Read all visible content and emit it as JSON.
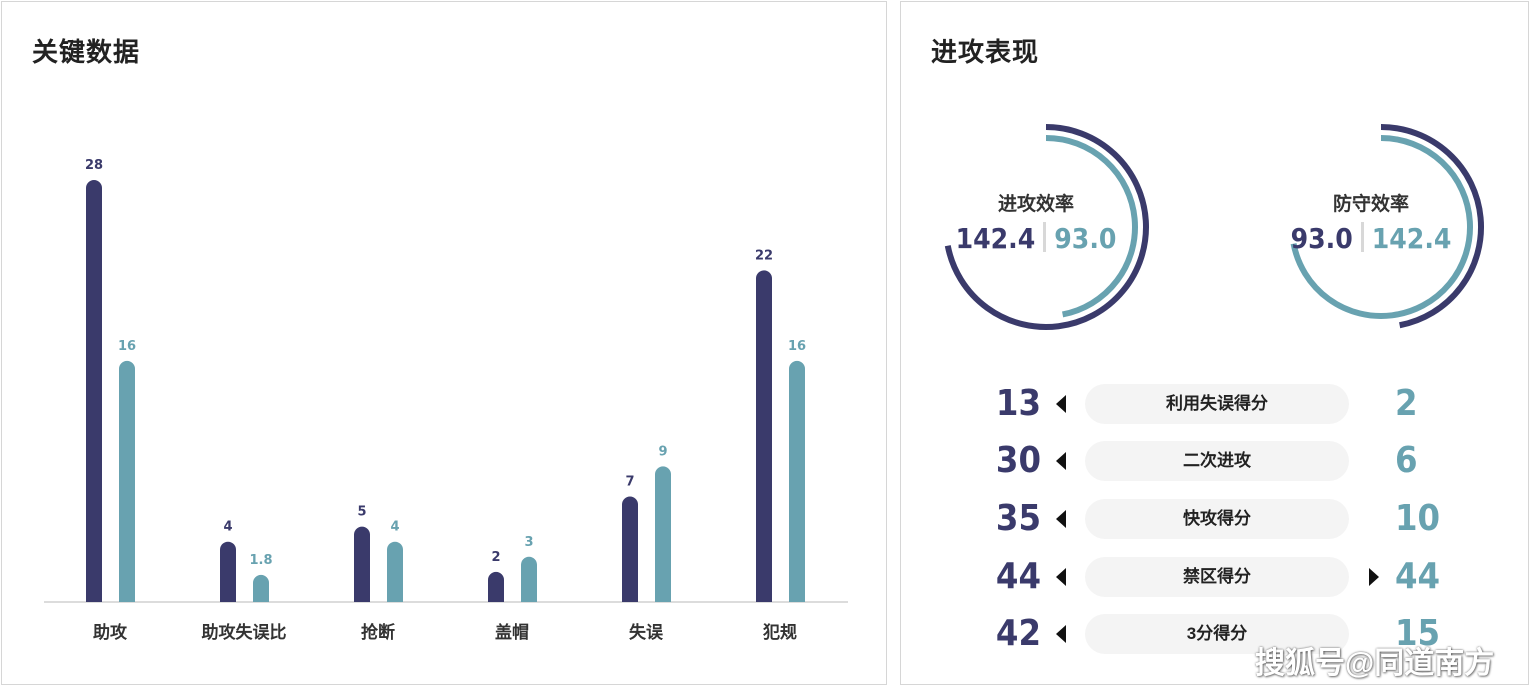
{
  "left_panel": {
    "title": "关键数据"
  },
  "right_panel": {
    "title": "进攻表现"
  },
  "colors": {
    "team_a": "#3a3a6b",
    "team_b": "#68a2b0",
    "baseline": "#d0d0d0"
  },
  "chart_data": {
    "type": "bar",
    "title": "",
    "categories": [
      "助攻",
      "助攻失误比",
      "抢断",
      "盖帽",
      "失误",
      "犯规"
    ],
    "series": [
      {
        "values": [
          28,
          4,
          5,
          2,
          7,
          22
        ],
        "labels": [
          "28",
          "4",
          "5",
          "2",
          "7",
          "22"
        ]
      },
      {
        "values": [
          16,
          1.8,
          4,
          3,
          9,
          16
        ],
        "labels": [
          "16",
          "1.8",
          "4",
          "3",
          "9",
          "16"
        ]
      }
    ],
    "ylim": [
      0,
      28
    ],
    "grid": false,
    "legend": "none"
  },
  "efficiency": [
    {
      "title": "进攻效率",
      "value_a": "142.4",
      "value_b": "93.0",
      "fraction_a": 1.0,
      "fraction_b": 0.653
    },
    {
      "title": "防守效率",
      "value_a": "93.0",
      "value_b": "142.4",
      "fraction_a": 0.653,
      "fraction_b": 1.0
    }
  ],
  "stats": [
    {
      "label": "利用失误得分",
      "left": "13",
      "right": "2",
      "left_arrow": true,
      "right_arrow": false
    },
    {
      "label": "二次进攻",
      "left": "30",
      "right": "6",
      "left_arrow": true,
      "right_arrow": false
    },
    {
      "label": "快攻得分",
      "left": "35",
      "right": "10",
      "left_arrow": true,
      "right_arrow": false
    },
    {
      "label": "禁区得分",
      "left": "44",
      "right": "44",
      "left_arrow": true,
      "right_arrow": true
    },
    {
      "label": "3分得分",
      "left": "42",
      "right": "15",
      "left_arrow": true,
      "right_arrow": false
    }
  ],
  "watermark": "搜狐号@同道南方"
}
